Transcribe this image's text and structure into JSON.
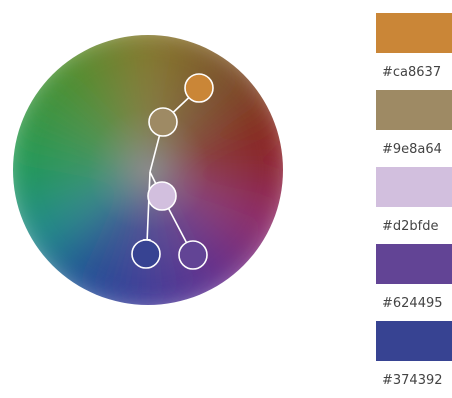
{
  "color_wheel": {
    "nodes": [
      {
        "name": "handle-orange",
        "color": "#ca8637"
      },
      {
        "name": "handle-taupe",
        "color": "#9e8a64"
      },
      {
        "name": "handle-lavender",
        "color": "#d2bfde"
      },
      {
        "name": "handle-blue",
        "color": "#374392"
      },
      {
        "name": "handle-violet",
        "color": "#624495"
      }
    ]
  },
  "palette": {
    "swatches": [
      {
        "color": "#ca8637",
        "hex": "#ca8637"
      },
      {
        "color": "#9e8a64",
        "hex": "#9e8a64"
      },
      {
        "color": "#d2bfde",
        "hex": "#d2bfde"
      },
      {
        "color": "#624495",
        "hex": "#624495"
      },
      {
        "color": "#374392",
        "hex": "#374392"
      }
    ]
  }
}
